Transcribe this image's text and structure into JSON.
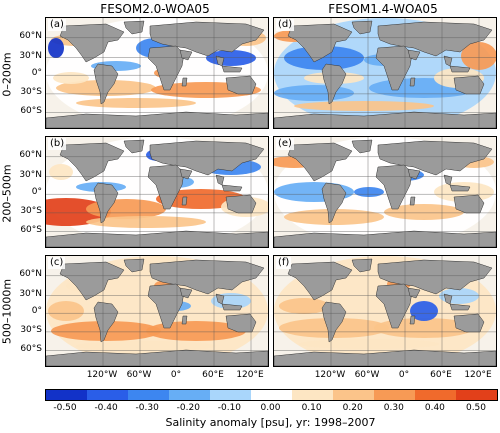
{
  "columns": [
    {
      "title": "FESOM2.0-WOA05"
    },
    {
      "title": "FESOM1.4-WOA05"
    }
  ],
  "rows": [
    {
      "label": "0–200m"
    },
    {
      "label": "200–500m"
    },
    {
      "label": "500–1000m"
    }
  ],
  "panel_labels": [
    "(a)",
    "(d)",
    "(b)",
    "(e)",
    "(c)",
    "(f)"
  ],
  "lat_ticks": [
    "60°N",
    "30°N",
    "0°",
    "30°S",
    "60°S"
  ],
  "lon_ticks": [
    "120°W",
    "60°W",
    "0°",
    "60°E",
    "120°E"
  ],
  "colorbar": {
    "ticks": [
      "-0.50",
      "-0.40",
      "-0.30",
      "-0.20",
      "-0.10",
      "0.00",
      "0.10",
      "0.20",
      "0.30",
      "0.40",
      "0.50"
    ],
    "label": "Salinity anomaly [psu], yr: 1998–2007",
    "colors": [
      "#1232c8",
      "#2a5ee8",
      "#3d86f0",
      "#67aef5",
      "#a9d6fb",
      "#ffffff",
      "#fde6c3",
      "#fbc48a",
      "#f79a55",
      "#f06a2c",
      "#e2401a"
    ]
  },
  "colors": {
    "land": "#9b9b9b",
    "ocean_neutral": "#f7f2ea"
  }
}
